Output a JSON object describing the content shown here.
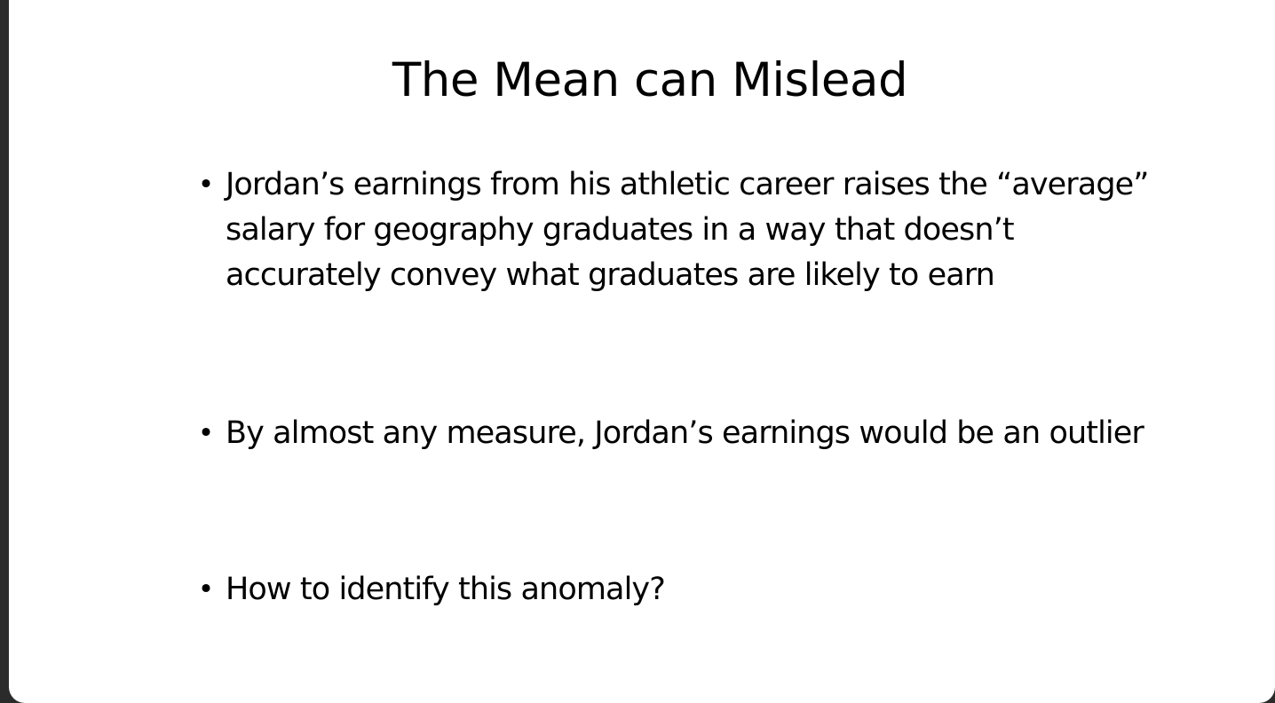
{
  "slide": {
    "title": "The Mean can Mislead",
    "bullet_symbol": "•",
    "bullets": [
      {
        "text": "Jordan’s earnings from his athletic career raises the “average” salary for geography graduates in a way that doesn’t accurately convey what graduates are likely to earn"
      },
      {
        "text": "By almost any measure, Jordan’s earnings would be an outlier"
      },
      {
        "text": "How to identify this anomaly?"
      }
    ]
  },
  "colors": {
    "background_frame": "#2b2b2b",
    "slide_background": "#ffffff",
    "text": "#000000"
  }
}
